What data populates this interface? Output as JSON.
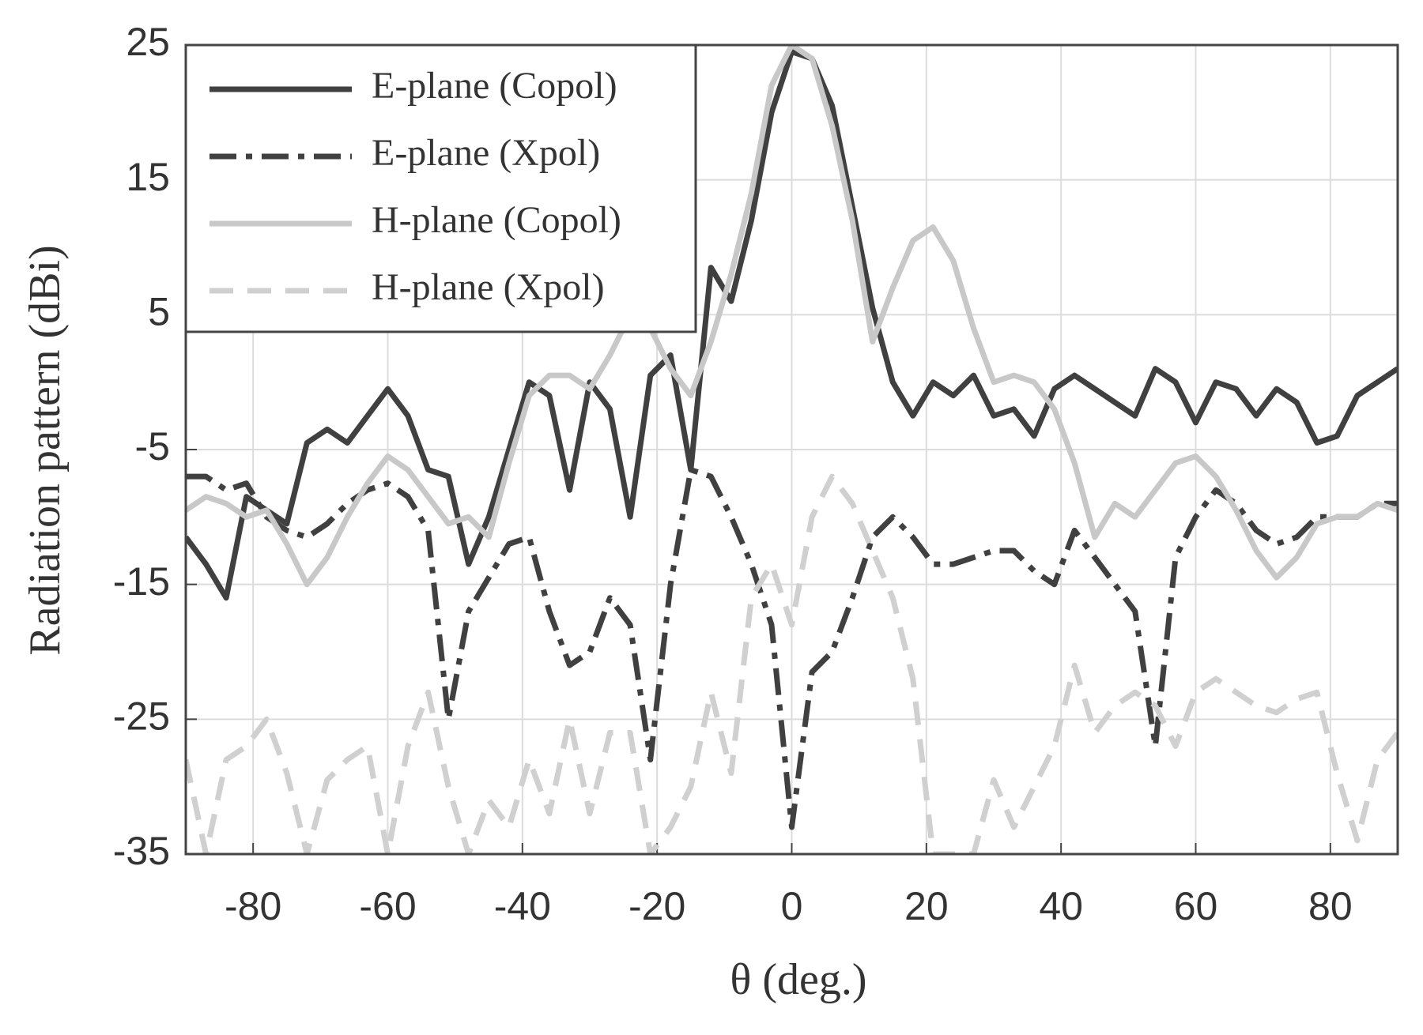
{
  "chart_data": {
    "type": "line",
    "xlabel": "θ (deg.)",
    "ylabel": "Radiation pattern (dBi)",
    "xlim": [
      -90,
      90
    ],
    "ylim": [
      -35,
      25
    ],
    "xticks": [
      -80,
      -60,
      -40,
      -20,
      0,
      20,
      40,
      60,
      80
    ],
    "yticks": [
      -35,
      -25,
      -15,
      -5,
      5,
      15,
      25
    ],
    "grid": true,
    "legend": "upper left",
    "x": [
      -90,
      -87,
      -84,
      -81,
      -78,
      -75,
      -72,
      -69,
      -66,
      -63,
      -60,
      -57,
      -54,
      -51,
      -48,
      -45,
      -42,
      -39,
      -36,
      -33,
      -30,
      -27,
      -24,
      -21,
      -18,
      -15,
      -12,
      -9,
      -6,
      -3,
      0,
      3,
      6,
      9,
      12,
      15,
      18,
      21,
      24,
      27,
      30,
      33,
      36,
      39,
      42,
      45,
      48,
      51,
      54,
      57,
      60,
      63,
      66,
      69,
      72,
      75,
      78,
      81,
      84,
      87,
      90
    ],
    "series": [
      {
        "name": "E-plane (Copol)",
        "color": "#404040",
        "dash": "solid",
        "values": [
          -11.5,
          -13.5,
          -16,
          -8.5,
          -9.5,
          -10.5,
          -4.5,
          -3.5,
          -4.5,
          -2.5,
          -0.5,
          -2.5,
          -6.5,
          -7,
          -13.5,
          -10,
          -5,
          0,
          -1,
          -8,
          0,
          -2,
          -10,
          0.5,
          2,
          -6.5,
          8.5,
          6,
          12,
          20,
          24.5,
          24,
          20.5,
          13,
          5.5,
          0,
          -2.5,
          0,
          -1,
          0.5,
          -2.5,
          -2,
          -4,
          -0.5,
          0.5,
          -0.5,
          -1.5,
          -2.5,
          1,
          0,
          -3,
          0,
          -0.5,
          -2.5,
          -0.5,
          -1.5,
          -4.5,
          -4,
          -1,
          0,
          1
        ]
      },
      {
        "name": "E-plane (Xpol)",
        "color": "#404040",
        "dash": "dash-dot",
        "values": [
          -7,
          -7,
          -8,
          -7.5,
          -10,
          -11,
          -11.5,
          -10.5,
          -9,
          -8,
          -7.5,
          -8.5,
          -11,
          -25,
          -17,
          -14.5,
          -12,
          -11.5,
          -17,
          -21,
          -20,
          -16,
          -18,
          -28,
          -15,
          -6.5,
          -7,
          -10,
          -13.5,
          -18,
          -33,
          -21.5,
          -20,
          -16,
          -11.5,
          -10,
          -11.5,
          -13.5,
          -13.5,
          -13,
          -12.5,
          -12.5,
          -14,
          -15,
          -11,
          -13,
          -15,
          -17,
          -27,
          -13,
          -10,
          -8,
          -9,
          -11,
          -12,
          -11.5,
          -10,
          -10,
          -10,
          -9,
          -9
        ]
      },
      {
        "name": "H-plane (Copol)",
        "color": "#c8c8c8",
        "dash": "solid",
        "values": [
          -9.5,
          -8.5,
          -9,
          -10,
          -9.5,
          -12,
          -15,
          -13,
          -10,
          -7.5,
          -5.5,
          -6.5,
          -8.5,
          -10.5,
          -10,
          -11.5,
          -6,
          -1,
          0.5,
          0.5,
          -0.5,
          2,
          5,
          4,
          1,
          -1,
          3,
          8,
          14,
          22,
          25,
          24,
          19,
          12,
          3,
          7,
          10.5,
          11.5,
          9,
          4,
          0,
          0.5,
          0,
          -2,
          -6,
          -11.5,
          -9,
          -10,
          -8,
          -6,
          -5.5,
          -7,
          -9.5,
          -12.5,
          -14.5,
          -13,
          -10.5,
          -10,
          -10,
          -9,
          -9.5
        ]
      },
      {
        "name": "H-plane (Xpol)",
        "color": "#d0d0d0",
        "dash": "dash",
        "values": [
          -28,
          -35,
          -28,
          -27,
          -25,
          -29,
          -35,
          -29.5,
          -28,
          -27,
          -35,
          -27,
          -23,
          -30,
          -35,
          -31,
          -33,
          -28,
          -32,
          -25,
          -32,
          -26,
          -26,
          -35,
          -33,
          -30,
          -23,
          -29,
          -16,
          -13.5,
          -18,
          -10,
          -7,
          -9,
          -12.5,
          -16,
          -22,
          -35,
          -35,
          -35,
          -29.5,
          -33,
          -30,
          -27,
          -21,
          -26,
          -24,
          -23,
          -24,
          -27,
          -23,
          -22,
          -23,
          -24,
          -24.5,
          -23.5,
          -23,
          -29,
          -34,
          -28,
          -26
        ]
      }
    ]
  }
}
